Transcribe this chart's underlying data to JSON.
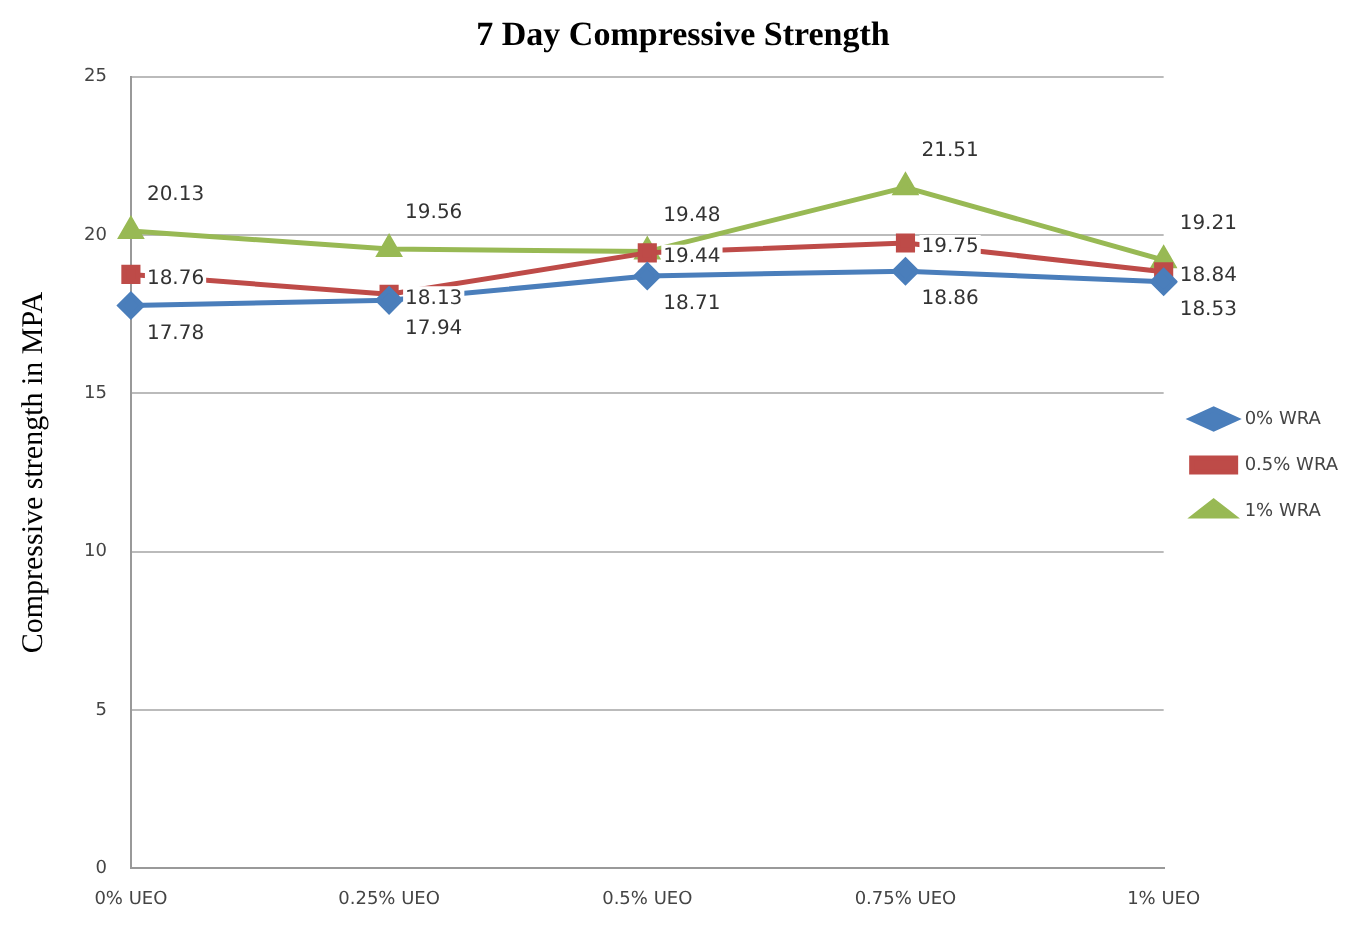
{
  "chart_data": {
    "type": "line",
    "title": "7 Day Compressive Strength",
    "ylabel": "Compressive strength in MPA",
    "categories": [
      "0% UEO",
      "0.25% UEO",
      "0.5% UEO",
      "0.75% UEO",
      "1% UEO"
    ],
    "series": [
      {
        "name": "0% WRA",
        "color": "#4a7ebb",
        "marker": "diamond",
        "values": [
          17.78,
          17.94,
          18.71,
          18.86,
          18.53
        ]
      },
      {
        "name": "0.5% WRA",
        "color": "#be4b48",
        "marker": "square",
        "values": [
          18.76,
          18.13,
          19.44,
          19.75,
          18.84
        ]
      },
      {
        "name": "1% WRA",
        "color": "#98b954",
        "marker": "triangle",
        "values": [
          20.13,
          19.56,
          19.48,
          21.51,
          19.21
        ]
      }
    ],
    "ylim": [
      0,
      25
    ],
    "yticks": [
      0,
      5,
      10,
      15,
      20,
      25
    ],
    "grid": "y",
    "legend": "right",
    "data_labels": true,
    "line_style": "solid"
  }
}
